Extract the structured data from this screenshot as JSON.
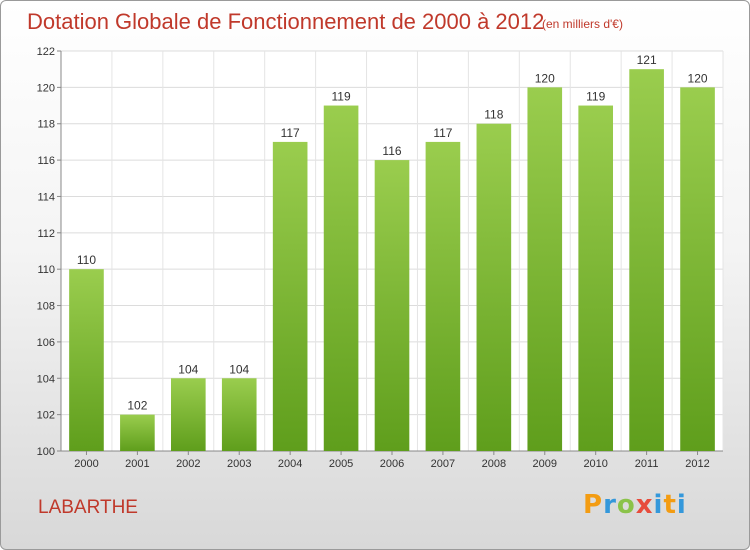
{
  "header": {
    "title": "Dotation Globale de Fonctionnement de 2000 à 2012",
    "subtitle": "(en milliers d'€)"
  },
  "commune": "LABARTHE",
  "logo": {
    "letters": [
      "P",
      "r",
      "o",
      "x",
      "i",
      "t",
      "i"
    ],
    "colors": [
      "#f39c12",
      "#3498db",
      "#8bc34a",
      "#e74c3c",
      "#3498db",
      "#f39c12",
      "#3498db"
    ]
  },
  "chart_data": {
    "type": "bar",
    "categories": [
      "2000",
      "2001",
      "2002",
      "2003",
      "2004",
      "2005",
      "2006",
      "2007",
      "2008",
      "2009",
      "2010",
      "2011",
      "2012"
    ],
    "values": [
      110,
      102,
      104,
      104,
      117,
      119,
      116,
      117,
      118,
      120,
      119,
      121,
      120
    ],
    "ylim": [
      100,
      122
    ],
    "yticks": [
      100,
      102,
      104,
      106,
      108,
      110,
      112,
      114,
      116,
      118,
      120,
      122
    ],
    "grid": true,
    "bar_color_top": "#9acd4e",
    "bar_color_bottom": "#5f9e1c",
    "label_color": "#333333"
  }
}
